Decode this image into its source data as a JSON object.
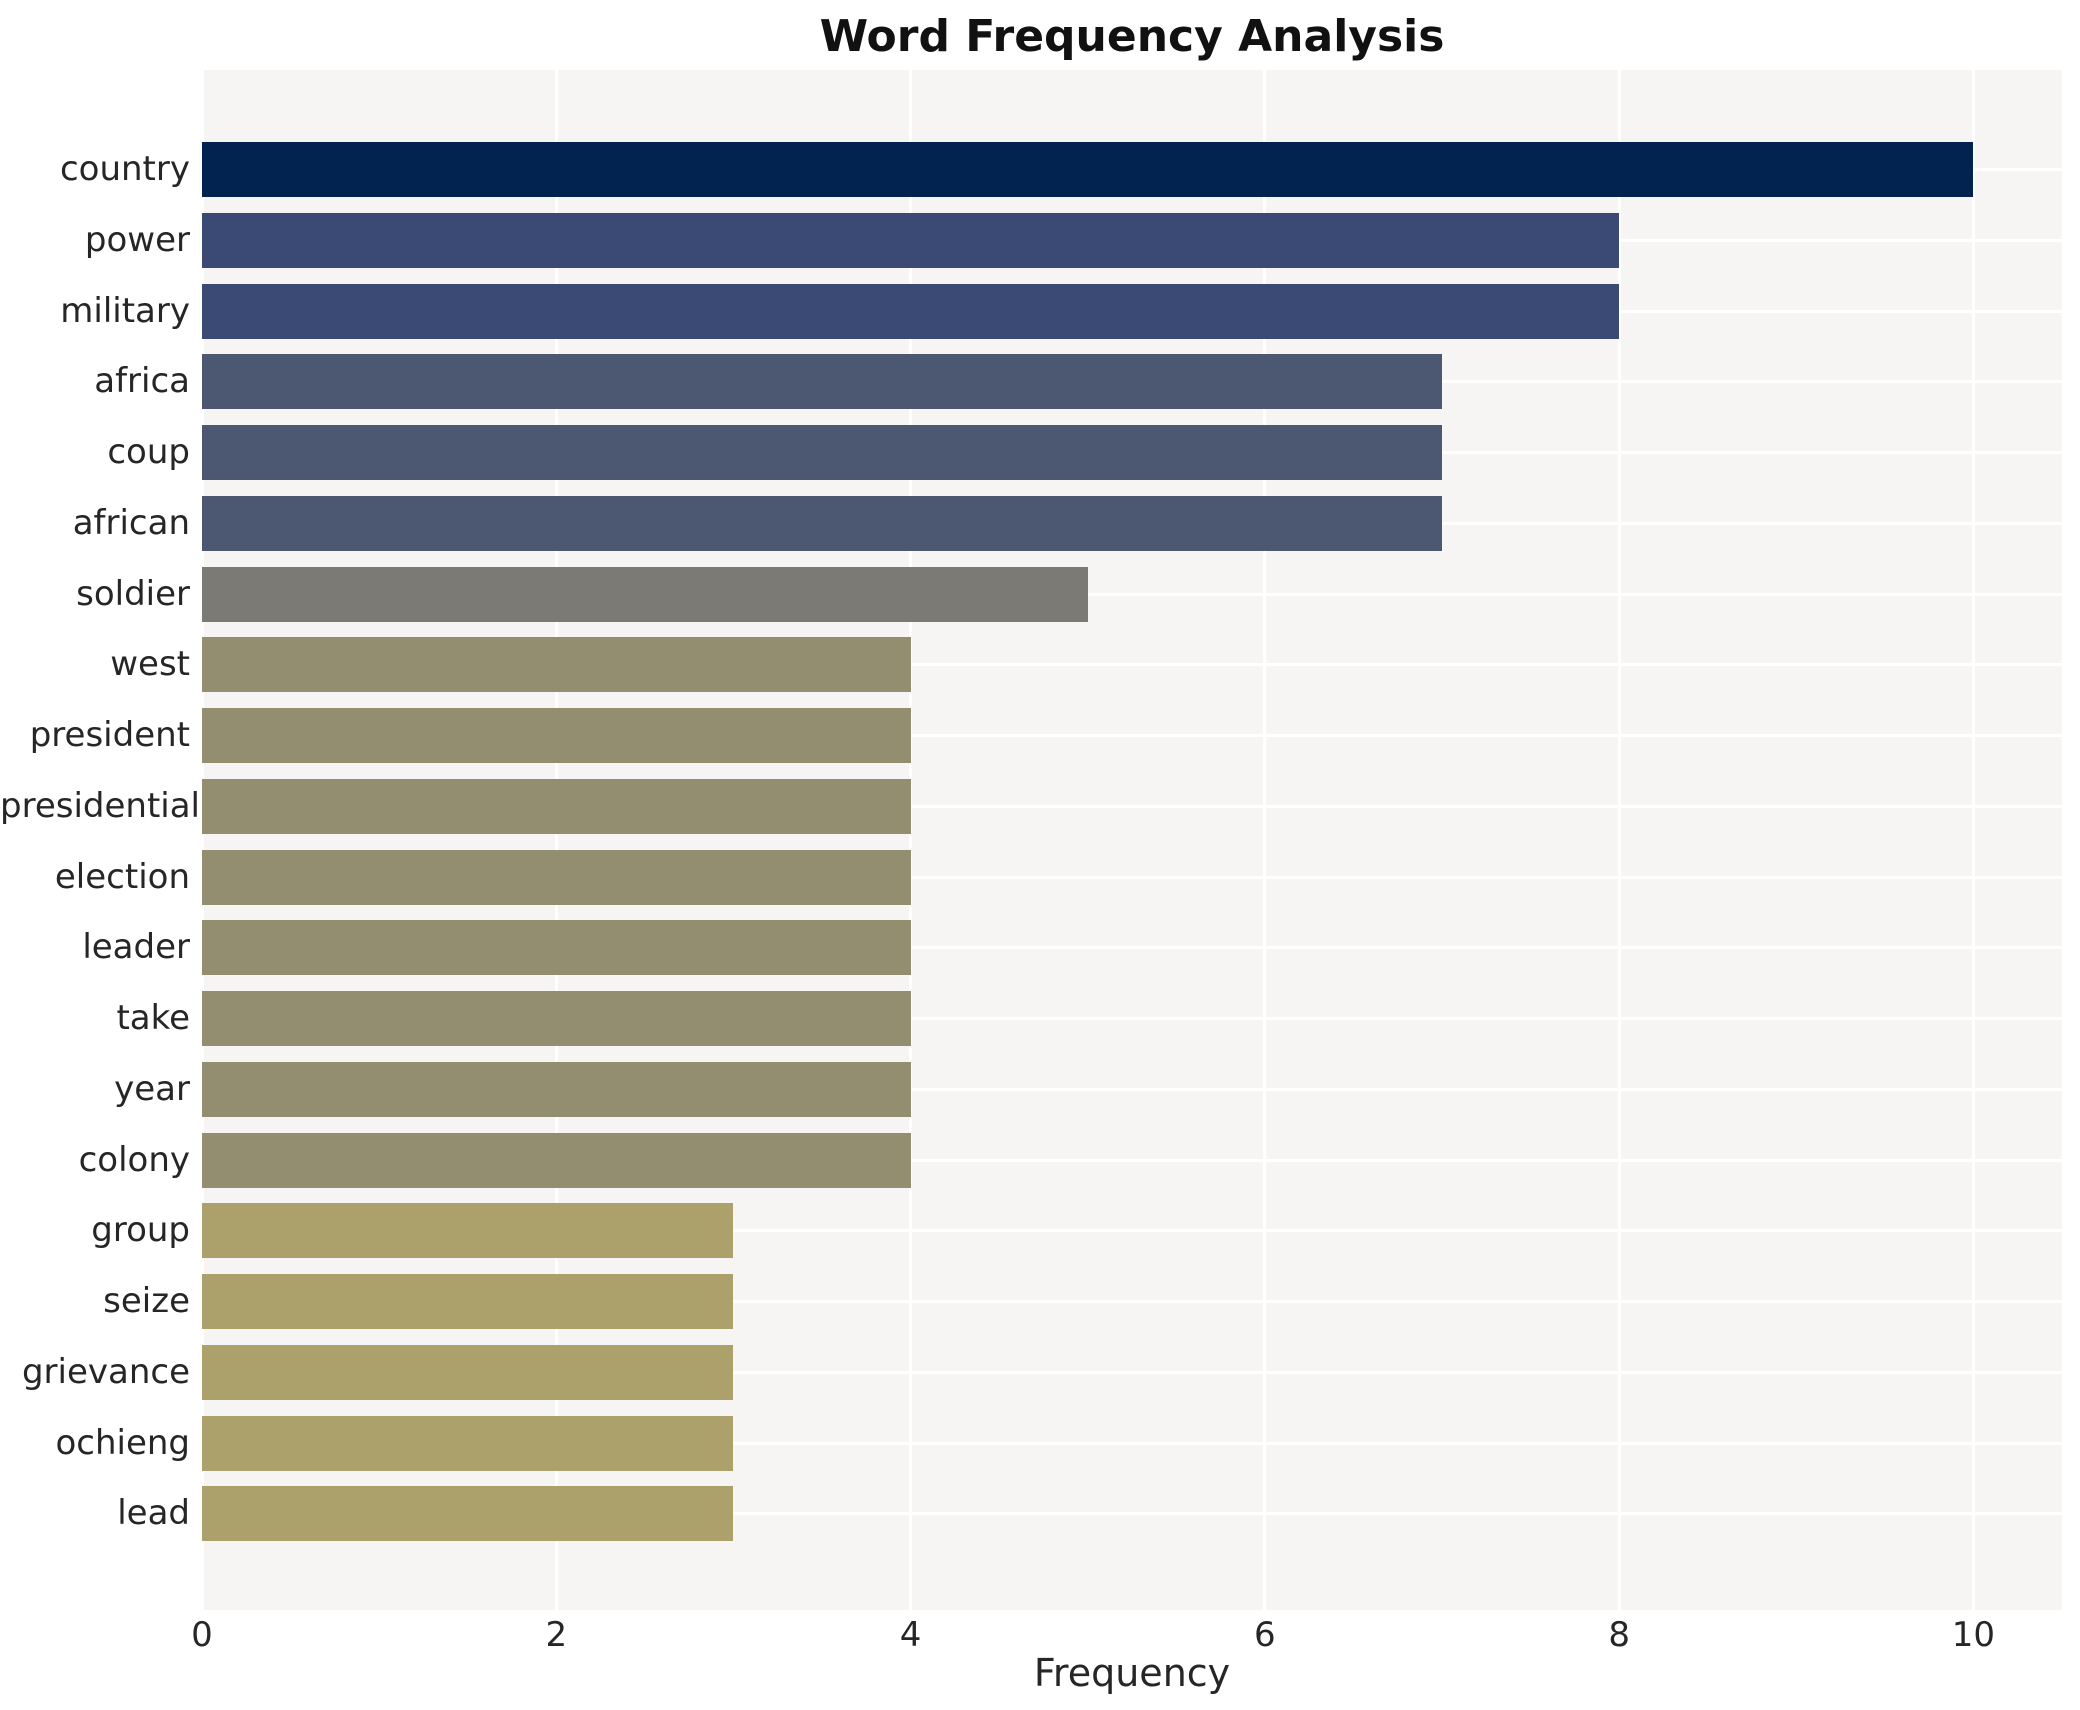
{
  "chart_data": {
    "type": "bar",
    "orientation": "horizontal",
    "title": "Word Frequency Analysis",
    "xlabel": "Frequency",
    "ylabel": "",
    "categories": [
      "country",
      "power",
      "military",
      "africa",
      "coup",
      "african",
      "soldier",
      "west",
      "president",
      "presidential",
      "election",
      "leader",
      "take",
      "year",
      "colony",
      "group",
      "seize",
      "grievance",
      "ochieng",
      "lead"
    ],
    "values": [
      10,
      8,
      8,
      7,
      7,
      7,
      5,
      4,
      4,
      4,
      4,
      4,
      4,
      4,
      4,
      3,
      3,
      3,
      3,
      3
    ],
    "xticks": [
      0,
      2,
      4,
      6,
      8,
      10
    ],
    "xlim": [
      0,
      10.5
    ],
    "grid": true,
    "legend_position": "none",
    "plot_background": "#f6f5f4",
    "grid_color": "#ffffff",
    "text_color": "#262626",
    "title_color": "#111111",
    "bar_colors_by_value": {
      "10": "#02234f",
      "8": "#3a4a74",
      "7": "#4c5872",
      "5": "#7b7a74",
      "4": "#948e71",
      "3": "#aca06b"
    }
  }
}
